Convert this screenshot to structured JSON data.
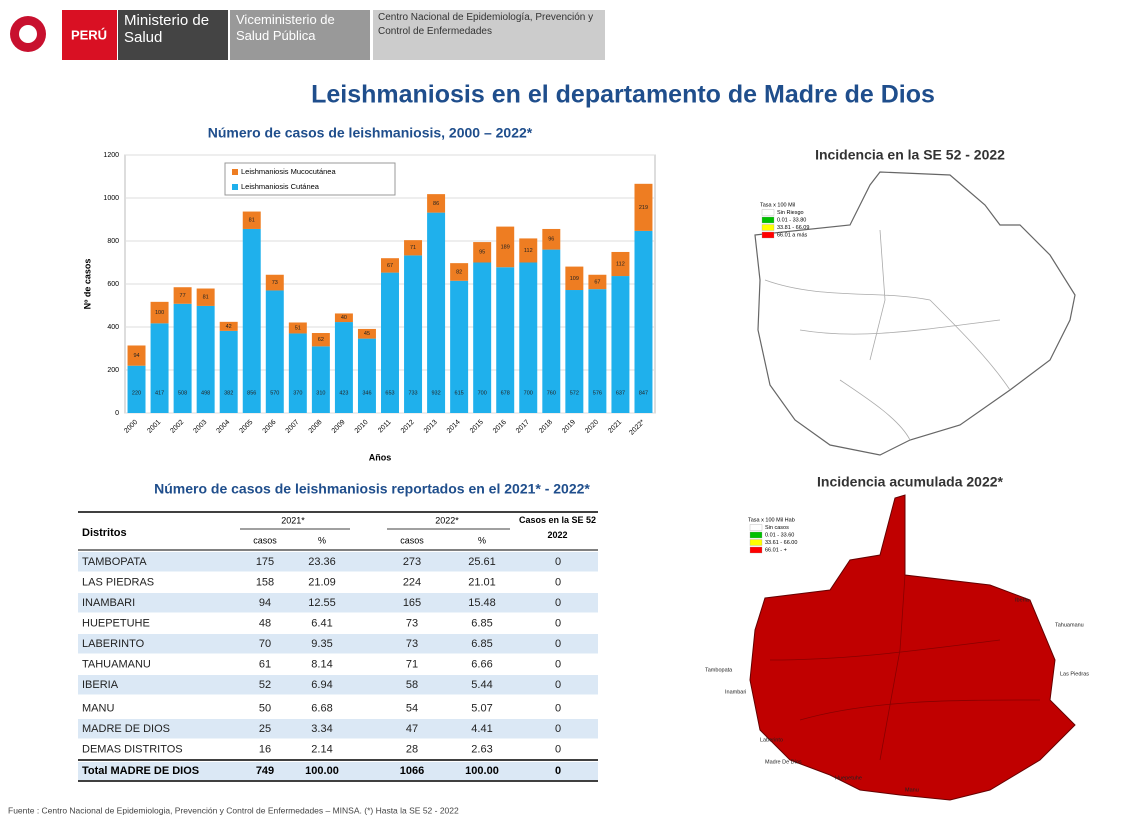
{
  "header": {
    "country": "PERÚ",
    "ministry": "Ministerio de Salud",
    "vice": "Viceministerio de Salud Pública",
    "center": "Centro Nacional de Epidemiología, Prevención y Control de Enfermedades"
  },
  "title": "Leishmaniosis en el departamento de Madre de Dios",
  "chart_data": {
    "type": "bar",
    "stacked": true,
    "title": "Número de casos de leishmaniosis, 2000 – 2022*",
    "x_label": "Años",
    "y_label": "Nº de casos",
    "categories": [
      "2000",
      "2001",
      "2002",
      "2003",
      "2004",
      "2005",
      "2006",
      "2007",
      "2008",
      "2009",
      "2010",
      "2011",
      "2012",
      "2013",
      "2014",
      "2015",
      "2016",
      "2017",
      "2018",
      "2019",
      "2020",
      "2021",
      "2022*"
    ],
    "series": [
      {
        "name": "Leishmaniosis Cutánea",
        "color": "#1fb0ec",
        "values": [
          220,
          417,
          508,
          498,
          382,
          856,
          570,
          370,
          310,
          423,
          346,
          653,
          733,
          932,
          615,
          700,
          678,
          700,
          760,
          572,
          576,
          637,
          847
        ]
      },
      {
        "name": "Leishmaniosis Mucocutánea",
        "color": "#ee7d22",
        "values": [
          94,
          100,
          77,
          81,
          42,
          81,
          73,
          51,
          62,
          40,
          45,
          67,
          71,
          86,
          82,
          95,
          189,
          112,
          96,
          109,
          67,
          112,
          219
        ]
      }
    ],
    "ylim": [
      0,
      1200
    ],
    "yticks": [
      0,
      200,
      400,
      600,
      800,
      1000,
      1200
    ],
    "grid": true
  },
  "map1": {
    "title": "Incidencia en la  SE 52 - 2022",
    "legend": [
      "Tasa x 100 Mil",
      "Sin Riesgo",
      "0.01 - 33.80",
      "33.81 - 66.09",
      "66.01 a más"
    ]
  },
  "map2": {
    "title": "Incidencia acumulada 2022*",
    "legend": [
      "Tasa x 100 Mil Hab",
      "Sin casos",
      "0.01 - 33.60",
      "33.61 - 66.00",
      "66.01 - +"
    ],
    "labels": [
      "Iberia",
      "Tahuamanu",
      "Las Piedras",
      "Tambopata",
      "Inambari",
      "Laberinto",
      "Madre De Dios",
      "Huepetuhe",
      "Manu"
    ]
  },
  "table": {
    "title": "Número de casos de leishmaniosis reportados en el 2021*  -  2022*",
    "head": [
      "Distritos",
      "2021*",
      "2022*",
      "Casos en la SE 52 2022",
      "casos",
      "%"
    ],
    "rows": [
      [
        "TAMBOPATA",
        "175",
        "23.36",
        "273",
        "25.61",
        "0"
      ],
      [
        "LAS PIEDRAS",
        "158",
        "21.09",
        "224",
        "21.01",
        "0"
      ],
      [
        "INAMBARI",
        "94",
        "12.55",
        "165",
        "15.48",
        "0"
      ],
      [
        "HUEPETUHE",
        "48",
        "6.41",
        "73",
        "6.85",
        "0"
      ],
      [
        "LABERINTO",
        "70",
        "9.35",
        "73",
        "6.85",
        "0"
      ],
      [
        "TAHUAMANU",
        "61",
        "8.14",
        "71",
        "6.66",
        "0"
      ],
      [
        "IBERIA",
        "52",
        "6.94",
        "58",
        "5.44",
        "0"
      ],
      [
        "MANU",
        "50",
        "6.68",
        "54",
        "5.07",
        "0"
      ],
      [
        "MADRE DE DIOS",
        "25",
        "3.34",
        "47",
        "4.41",
        "0"
      ],
      [
        "DEMAS DISTRITOS",
        "16",
        "2.14",
        "28",
        "2.63",
        "0"
      ]
    ],
    "total": [
      "Total MADRE DE DIOS",
      "749",
      "100.00",
      "1066",
      "100.00",
      "0"
    ]
  },
  "footer": "Fuente : Centro Nacional de Epidemiologia, Prevención y Control de Enfermedades – MINSA.  (*) Hasta la SE  52 - 2022"
}
